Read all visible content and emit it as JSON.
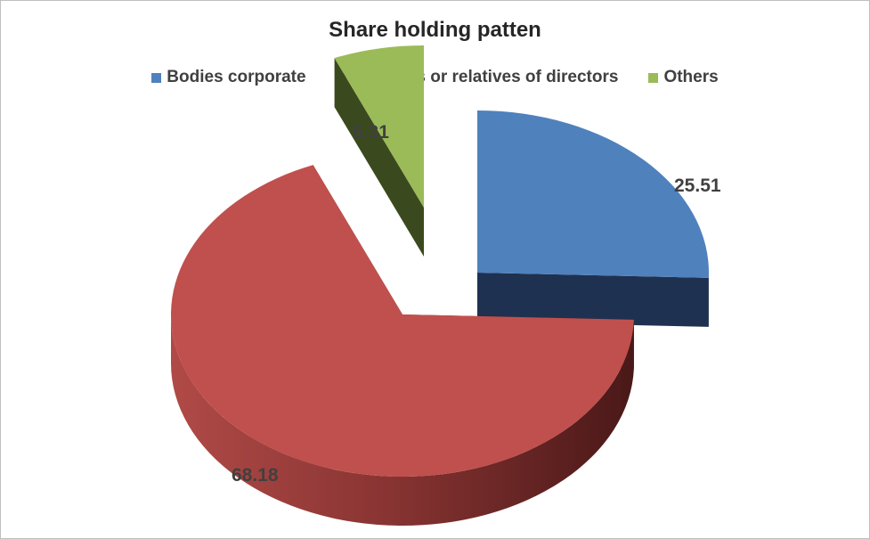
{
  "chart_data": {
    "type": "pie",
    "title": "Share holding patten",
    "categories": [
      "Bodies corporate",
      "Directors or relatives of directors",
      "Others"
    ],
    "values": [
      25.51,
      68.18,
      6.31
    ],
    "data_labels": [
      "25.51",
      "68.18",
      "6.31"
    ],
    "colors": [
      "#4f81bd",
      "#c0504d",
      "#9bbb59"
    ],
    "side_colors": [
      "#1f3150",
      "#5a2020",
      "#3b4a1e"
    ],
    "legend_position": "top",
    "style": "3d-exploded"
  }
}
